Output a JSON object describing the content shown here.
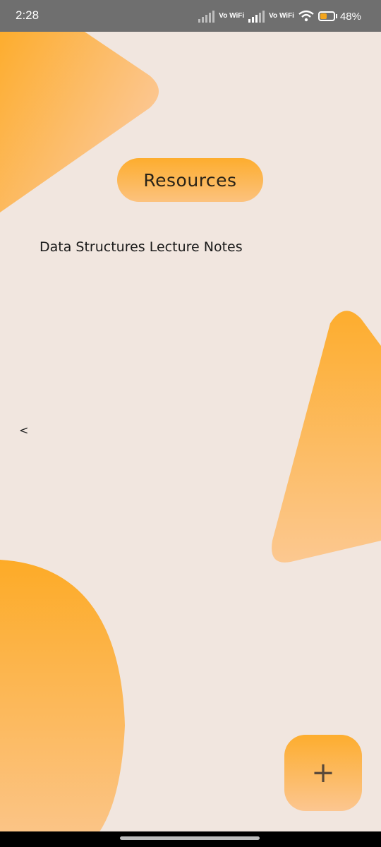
{
  "status_bar": {
    "time": "2:28",
    "vowifi_1": "Vo WiFi",
    "vowifi_2": "Vo WiFi",
    "battery_percent": "48%",
    "battery_level": 0.48
  },
  "header": {
    "title": "Resources"
  },
  "resources": {
    "items": [
      {
        "label": "Data Structures Lecture Notes"
      }
    ]
  },
  "nav": {
    "back_glyph": "<"
  },
  "fab": {
    "glyph": "+"
  },
  "colors": {
    "background": "#f1e6df",
    "accent_top": "#fdad2e",
    "accent_bottom": "#fcc27e"
  }
}
